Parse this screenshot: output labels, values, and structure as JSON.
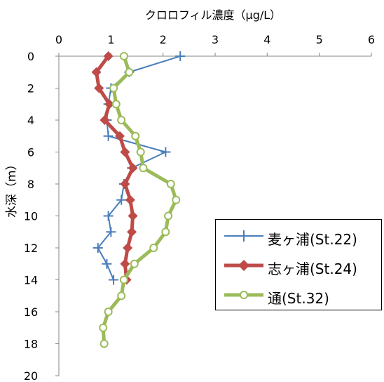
{
  "chart_data": {
    "type": "line",
    "title": "",
    "xlabel": "クロロフィル濃度（μg/L）",
    "ylabel": "水深（m）",
    "xlim": [
      0,
      6
    ],
    "ylim": [
      0,
      20
    ],
    "y_inverted": true,
    "x_axis_position": "top",
    "x_ticks": [
      "0",
      "1",
      "2",
      "3",
      "4",
      "5",
      "6"
    ],
    "y_ticks": [
      "0",
      "2",
      "4",
      "6",
      "8",
      "10",
      "12",
      "14",
      "16",
      "18",
      "20"
    ],
    "grid": false,
    "legend_position": "bottom-right",
    "series": [
      {
        "name": "麦ヶ浦(St.22)",
        "color": "#4A7EBB",
        "marker": "plus",
        "points": [
          [
            2.33,
            0
          ],
          [
            1.35,
            1
          ],
          [
            1.0,
            2
          ],
          [
            0.95,
            3
          ],
          [
            0.92,
            4
          ],
          [
            0.95,
            5
          ],
          [
            2.05,
            6
          ],
          [
            1.4,
            7
          ],
          [
            1.25,
            8
          ],
          [
            1.2,
            9
          ],
          [
            0.95,
            10
          ],
          [
            1.0,
            11
          ],
          [
            0.75,
            12
          ],
          [
            0.92,
            13
          ],
          [
            1.05,
            14
          ]
        ]
      },
      {
        "name": "志ヶ浦(St.24)",
        "color": "#BE4B48",
        "marker": "diamond",
        "points": [
          [
            0.95,
            0
          ],
          [
            0.72,
            1
          ],
          [
            0.77,
            2
          ],
          [
            0.97,
            3
          ],
          [
            0.88,
            4
          ],
          [
            1.17,
            5
          ],
          [
            1.27,
            6
          ],
          [
            1.42,
            7
          ],
          [
            1.27,
            8
          ],
          [
            1.37,
            9
          ],
          [
            1.42,
            10
          ],
          [
            1.4,
            11
          ],
          [
            1.32,
            12
          ],
          [
            1.27,
            13
          ],
          [
            1.3,
            14
          ]
        ]
      },
      {
        "name": "通(St.32)",
        "color": "#9BBB59",
        "marker": "circle",
        "points": [
          [
            1.25,
            0
          ],
          [
            1.35,
            1
          ],
          [
            1.05,
            2
          ],
          [
            1.1,
            3
          ],
          [
            1.2,
            4
          ],
          [
            1.47,
            5
          ],
          [
            1.57,
            6
          ],
          [
            1.62,
            7
          ],
          [
            2.15,
            8
          ],
          [
            2.25,
            9
          ],
          [
            2.1,
            10
          ],
          [
            2.05,
            11
          ],
          [
            1.82,
            12
          ],
          [
            1.45,
            13
          ],
          [
            1.25,
            14
          ],
          [
            1.2,
            15
          ],
          [
            0.95,
            16
          ],
          [
            0.85,
            17
          ],
          [
            0.87,
            18
          ]
        ]
      }
    ]
  }
}
